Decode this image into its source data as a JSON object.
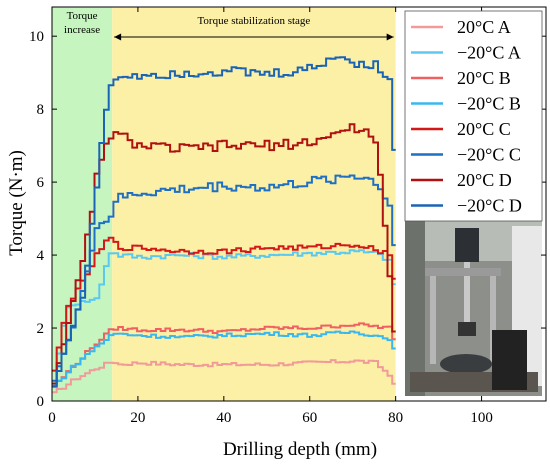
{
  "chart_data": {
    "type": "line",
    "xlabel": "Drilling depth (mm)",
    "ylabel": "Torque (N·m)",
    "xlim": [
      0,
      115
    ],
    "ylim": [
      0,
      10.8
    ],
    "xticks": [
      0,
      20,
      40,
      60,
      80,
      100
    ],
    "yticks": [
      0,
      2,
      4,
      6,
      8,
      10
    ],
    "grid": false,
    "legend_position": "top-right",
    "stages": [
      {
        "label": "Torque increase",
        "range": [
          0,
          14
        ],
        "color": "#c6f5c0"
      },
      {
        "label": "Torque stabilization stage",
        "range": [
          14,
          80
        ],
        "color": "#fbf0a6"
      }
    ],
    "series": [
      {
        "name": "20°C A",
        "color": "#f29a9a",
        "points": [
          [
            0,
            0.2
          ],
          [
            5,
            0.6
          ],
          [
            10,
            0.9
          ],
          [
            14,
            1.1
          ],
          [
            15,
            1.0
          ],
          [
            20,
            1.05
          ],
          [
            30,
            1.0
          ],
          [
            40,
            1.0
          ],
          [
            50,
            1.0
          ],
          [
            60,
            1.05
          ],
          [
            70,
            1.1
          ],
          [
            75,
            1.05
          ],
          [
            79,
            0.6
          ],
          [
            80,
            0.2
          ]
        ]
      },
      {
        "name": "−20°C A",
        "color": "#5bc8f0",
        "points": [
          [
            0,
            0.5
          ],
          [
            3,
            2.6
          ],
          [
            6,
            2.7
          ],
          [
            10,
            2.8
          ],
          [
            13,
            4.1
          ],
          [
            15,
            4.0
          ],
          [
            20,
            3.95
          ],
          [
            30,
            4.0
          ],
          [
            40,
            3.95
          ],
          [
            50,
            4.0
          ],
          [
            60,
            4.05
          ],
          [
            70,
            4.1
          ],
          [
            75,
            4.05
          ],
          [
            79,
            3.8
          ],
          [
            80,
            0.5
          ]
        ]
      },
      {
        "name": "20°C B",
        "color": "#ef6060",
        "points": [
          [
            0,
            0.4
          ],
          [
            5,
            1.0
          ],
          [
            10,
            1.6
          ],
          [
            14,
            2.0
          ],
          [
            20,
            1.95
          ],
          [
            30,
            1.95
          ],
          [
            40,
            1.9
          ],
          [
            50,
            2.0
          ],
          [
            60,
            2.0
          ],
          [
            70,
            2.1
          ],
          [
            79,
            2.0
          ],
          [
            80,
            0.3
          ]
        ]
      },
      {
        "name": "−20°C B",
        "color": "#3ab8ee",
        "points": [
          [
            0,
            0.4
          ],
          [
            5,
            1.0
          ],
          [
            10,
            1.5
          ],
          [
            14,
            1.85
          ],
          [
            20,
            1.8
          ],
          [
            30,
            1.75
          ],
          [
            40,
            1.8
          ],
          [
            50,
            1.85
          ],
          [
            60,
            1.8
          ],
          [
            70,
            1.9
          ],
          [
            79,
            1.7
          ],
          [
            80,
            0.3
          ]
        ]
      },
      {
        "name": "20°C C",
        "color": "#d41818",
        "points": [
          [
            0,
            0.8
          ],
          [
            3,
            2.6
          ],
          [
            6,
            3.1
          ],
          [
            10,
            4.0
          ],
          [
            13,
            4.5
          ],
          [
            15,
            4.2
          ],
          [
            20,
            4.2
          ],
          [
            30,
            4.1
          ],
          [
            40,
            4.1
          ],
          [
            50,
            4.2
          ],
          [
            60,
            4.2
          ],
          [
            70,
            4.3
          ],
          [
            75,
            4.15
          ],
          [
            79,
            4.0
          ],
          [
            80,
            0.7
          ]
        ]
      },
      {
        "name": "−20°C C",
        "color": "#1f6fc4",
        "points": [
          [
            0,
            0.6
          ],
          [
            5,
            2.2
          ],
          [
            10,
            4.8
          ],
          [
            13,
            5.0
          ],
          [
            14,
            5.5
          ],
          [
            20,
            5.7
          ],
          [
            30,
            5.8
          ],
          [
            40,
            5.9
          ],
          [
            50,
            5.85
          ],
          [
            60,
            6.0
          ],
          [
            70,
            6.2
          ],
          [
            75,
            6.0
          ],
          [
            79,
            5.2
          ],
          [
            80,
            0.6
          ]
        ]
      },
      {
        "name": "20°C D",
        "color": "#b01010",
        "points": [
          [
            0,
            0.5
          ],
          [
            3,
            2.0
          ],
          [
            7,
            4.0
          ],
          [
            10,
            6.2
          ],
          [
            13,
            7.3
          ],
          [
            15,
            7.3
          ],
          [
            20,
            7.0
          ],
          [
            30,
            6.9
          ],
          [
            40,
            7.0
          ],
          [
            50,
            7.0
          ],
          [
            60,
            7.1
          ],
          [
            70,
            7.5
          ],
          [
            75,
            7.2
          ],
          [
            79,
            2.3
          ],
          [
            80,
            0.4
          ]
        ]
      },
      {
        "name": "−20°C D",
        "color": "#1a63b5",
        "points": [
          [
            0,
            0.4
          ],
          [
            3,
            1.6
          ],
          [
            7,
            3.0
          ],
          [
            10,
            6.0
          ],
          [
            12,
            8.0
          ],
          [
            14,
            8.9
          ],
          [
            20,
            8.95
          ],
          [
            30,
            9.0
          ],
          [
            40,
            9.05
          ],
          [
            50,
            8.95
          ],
          [
            60,
            9.1
          ],
          [
            65,
            9.45
          ],
          [
            70,
            9.3
          ],
          [
            75,
            9.2
          ],
          [
            79,
            8.6
          ],
          [
            80,
            0.4
          ]
        ]
      }
    ]
  }
}
